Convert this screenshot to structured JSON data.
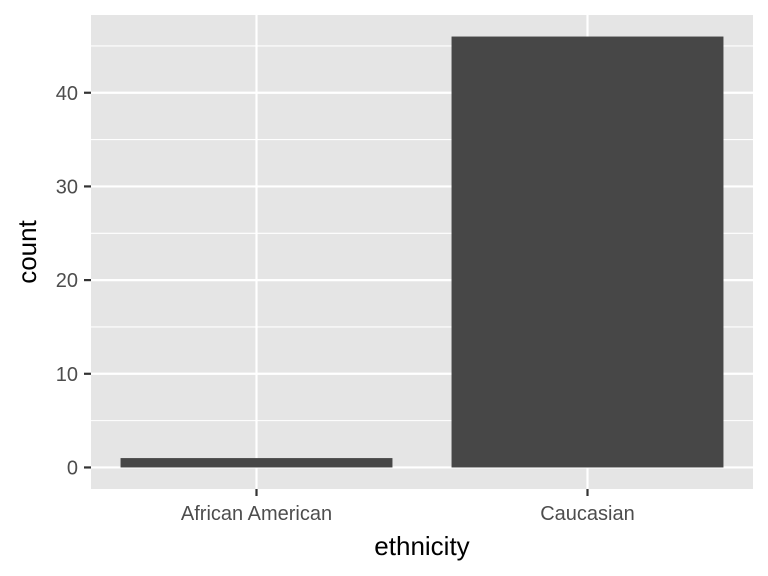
{
  "chart_data": {
    "type": "bar",
    "categories": [
      "African American",
      "Caucasian"
    ],
    "values": [
      1,
      46
    ],
    "xlabel": "ethnicity",
    "ylabel": "count",
    "ylim": [
      -2.3,
      48.3
    ],
    "yticks": [
      0,
      10,
      20,
      30,
      40
    ],
    "grid": true,
    "colors": {
      "panel": "#e5e5e5",
      "grid_major": "#ffffff",
      "bar": "#474747",
      "tick": "#333333"
    }
  }
}
